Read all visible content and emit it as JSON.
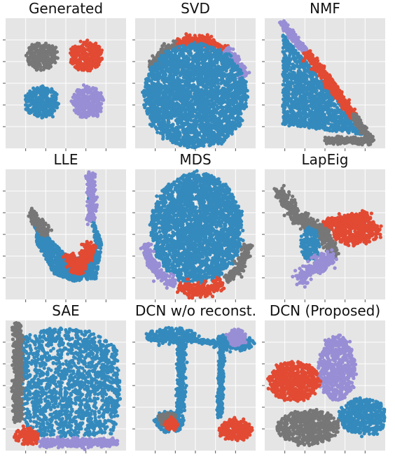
{
  "colors": {
    "cluster_blue": "#348ABD",
    "cluster_red": "#E24A33",
    "cluster_gray": "#777777",
    "cluster_purple": "#988ED5",
    "axes_bg": "#E5E5E5",
    "grid": "#FFFFFF"
  },
  "chart_data": [
    {
      "type": "scatter",
      "title": "Generated",
      "xlabel": "",
      "ylabel": "",
      "grid": true,
      "xlim": [
        0,
        10
      ],
      "ylim": [
        0,
        10
      ],
      "series": [
        {
          "color": "#777777",
          "shape": "blob",
          "cx": 3.0,
          "cy": 7.1,
          "rx": 1.3,
          "ry": 1.0
        },
        {
          "color": "#E24A33",
          "shape": "blob",
          "cx": 6.7,
          "cy": 7.1,
          "rx": 1.3,
          "ry": 1.1
        },
        {
          "color": "#348ABD",
          "shape": "blob",
          "cx": 3.0,
          "cy": 3.5,
          "rx": 1.4,
          "ry": 1.2
        },
        {
          "color": "#988ED5",
          "shape": "blob",
          "cx": 6.8,
          "cy": 3.5,
          "rx": 1.3,
          "ry": 1.2
        }
      ]
    },
    {
      "type": "scatter",
      "title": "SVD",
      "xlabel": "",
      "ylabel": "",
      "grid": true,
      "xlim": [
        0,
        10
      ],
      "ylim": [
        0,
        10
      ],
      "series": [
        {
          "color": "#777777",
          "shape": "arc",
          "cx": 5.0,
          "cy": 4.0,
          "r": 4.3,
          "a0": 150,
          "a1": 110,
          "width": 0.35
        },
        {
          "color": "#E24A33",
          "shape": "arc",
          "cx": 5.0,
          "cy": 4.0,
          "r": 4.3,
          "a0": 110,
          "a1": 55,
          "width": 0.4
        },
        {
          "color": "#988ED5",
          "shape": "arc",
          "cx": 5.0,
          "cy": 4.0,
          "r": 4.3,
          "a0": 55,
          "a1": 20,
          "width": 0.4
        },
        {
          "color": "#348ABD",
          "shape": "blob",
          "cx": 5.0,
          "cy": 4.0,
          "rx": 4.3,
          "ry": 4.0
        }
      ]
    },
    {
      "type": "scatter",
      "title": "NMF",
      "xlabel": "",
      "ylabel": "",
      "grid": true,
      "xlim": [
        0,
        10
      ],
      "ylim": [
        0,
        10
      ],
      "series": [
        {
          "color": "#348ABD",
          "shape": "triangle",
          "pts": [
            [
              1.5,
              1.8
            ],
            [
              1.5,
              8.8
            ],
            [
              8.5,
              1.0
            ]
          ]
        },
        {
          "color": "#988ED5",
          "shape": "line",
          "pts": [
            [
              1.4,
              9.6
            ],
            [
              3.6,
              7.2
            ]
          ],
          "width": 0.25
        },
        {
          "color": "#E24A33",
          "shape": "line",
          "pts": [
            [
              3.6,
              7.2
            ],
            [
              7.4,
              2.5
            ]
          ],
          "width": 0.35
        },
        {
          "color": "#777777",
          "shape": "line",
          "pts": [
            [
              7.4,
              2.5
            ],
            [
              8.8,
              0.6
            ],
            [
              5.0,
              0.6
            ]
          ],
          "width": 0.25
        }
      ]
    },
    {
      "type": "scatter",
      "title": "LLE",
      "xlabel": "",
      "ylabel": "",
      "grid": true,
      "xlim": [
        0,
        10
      ],
      "ylim": [
        0,
        10
      ],
      "series": [
        {
          "color": "#348ABD",
          "shape": "poly",
          "pts": [
            [
              2.3,
              6.3
            ],
            [
              3.5,
              4.8
            ],
            [
              5.5,
              3.0
            ],
            [
              7.5,
              4.2
            ],
            [
              7.0,
              6.5
            ],
            [
              6.8,
              8.8
            ],
            [
              7.3,
              6.2
            ],
            [
              8.0,
              4.3
            ],
            [
              7.5,
              1.6
            ],
            [
              5.5,
              1.4
            ],
            [
              4.0,
              2.0
            ],
            [
              2.6,
              4.3
            ]
          ]
        },
        {
          "color": "#777777",
          "shape": "line",
          "pts": [
            [
              2.2,
              6.6
            ],
            [
              3.0,
              5.6
            ],
            [
              3.5,
              5.0
            ]
          ],
          "width": 0.35
        },
        {
          "color": "#988ED5",
          "shape": "line",
          "pts": [
            [
              7.0,
              9.6
            ],
            [
              7.2,
              7.3
            ],
            [
              7.0,
              6.1
            ]
          ],
          "width": 0.3
        },
        {
          "color": "#E24A33",
          "shape": "line",
          "pts": [
            [
              5.3,
              3.2
            ],
            [
              6.1,
              2.2
            ],
            [
              6.6,
              3.2
            ],
            [
              7.0,
              4.3
            ]
          ],
          "width": 0.5
        }
      ]
    },
    {
      "type": "scatter",
      "title": "MDS",
      "xlabel": "",
      "ylabel": "",
      "grid": true,
      "xlim": [
        0,
        10
      ],
      "ylim": [
        0,
        10
      ],
      "series": [
        {
          "color": "#348ABD",
          "shape": "blob",
          "cx": 5.1,
          "cy": 5.5,
          "rx": 3.8,
          "ry": 4.2
        },
        {
          "color": "#988ED5",
          "shape": "arc",
          "cx": 5.1,
          "cy": 5.0,
          "r": 4.3,
          "a0": 190,
          "a1": 245,
          "width": 0.4
        },
        {
          "color": "#E24A33",
          "shape": "arc",
          "cx": 5.1,
          "cy": 5.0,
          "r": 4.3,
          "a0": 250,
          "a1": 300,
          "width": 0.5
        },
        {
          "color": "#777777",
          "shape": "arc",
          "cx": 5.1,
          "cy": 5.0,
          "r": 4.3,
          "a0": 305,
          "a1": 350,
          "width": 0.4
        }
      ]
    },
    {
      "type": "scatter",
      "title": "LapEig",
      "xlabel": "",
      "ylabel": "",
      "grid": true,
      "xlim": [
        0,
        10
      ],
      "ylim": [
        0,
        10
      ],
      "series": [
        {
          "color": "#777777",
          "shape": "line",
          "pts": [
            [
              1.3,
              8.2
            ],
            [
              2.8,
              6.2
            ],
            [
              4.4,
              5.4
            ],
            [
              5.3,
              5.2
            ]
          ],
          "width": 0.5
        },
        {
          "color": "#777777",
          "shape": "line",
          "pts": [
            [
              5.0,
              4.7
            ],
            [
              5.8,
              3.5
            ]
          ],
          "width": 0.45
        },
        {
          "color": "#E24A33",
          "shape": "blob",
          "cx": 7.6,
          "cy": 5.2,
          "rx": 2.0,
          "ry": 1.0
        },
        {
          "color": "#E24A33",
          "shape": "line",
          "pts": [
            [
              5.1,
              5.9
            ],
            [
              8.6,
              6.4
            ]
          ],
          "width": 0.35
        },
        {
          "color": "#348ABD",
          "shape": "blob",
          "cx": 3.8,
          "cy": 4.2,
          "rx": 0.7,
          "ry": 1.3
        },
        {
          "color": "#988ED5",
          "shape": "line",
          "pts": [
            [
              5.5,
              3.3
            ],
            [
              4.0,
              2.3
            ],
            [
              2.9,
              1.5
            ]
          ],
          "width": 0.6
        }
      ]
    },
    {
      "type": "scatter",
      "title": "SAE",
      "xlabel": "",
      "ylabel": "",
      "grid": true,
      "xlim": [
        0,
        10
      ],
      "ylim": [
        0,
        10
      ],
      "series": [
        {
          "color": "#348ABD",
          "shape": "poly",
          "pts": [
            [
              1.3,
              8.7
            ],
            [
              4.0,
              9.5
            ],
            [
              7.0,
              9.2
            ],
            [
              9.2,
              8.0
            ],
            [
              9.6,
              4.0
            ],
            [
              9.0,
              1.3
            ],
            [
              4.5,
              1.0
            ],
            [
              2.0,
              1.2
            ],
            [
              1.3,
              3.0
            ]
          ]
        },
        {
          "color": "#777777",
          "shape": "line",
          "pts": [
            [
              1.0,
              9.7
            ],
            [
              1.0,
              2.3
            ]
          ],
          "width": 0.35
        },
        {
          "color": "#988ED5",
          "shape": "line",
          "pts": [
            [
              3.0,
              0.6
            ],
            [
              9.2,
              0.6
            ]
          ],
          "width": 0.3
        },
        {
          "color": "#E24A33",
          "shape": "blob",
          "cx": 1.8,
          "cy": 1.1,
          "rx": 1.0,
          "ry": 0.6
        }
      ]
    },
    {
      "type": "scatter",
      "title": "DCN w/o reconst.",
      "xlabel": "",
      "ylabel": "",
      "grid": true,
      "xlim": [
        0,
        10
      ],
      "ylim": [
        0,
        10
      ],
      "series": [
        {
          "color": "#348ABD",
          "shape": "blob",
          "cx": 3.0,
          "cy": 8.8,
          "rx": 2.0,
          "ry": 0.6
        },
        {
          "color": "#348ABD",
          "shape": "blob",
          "cx": 8.1,
          "cy": 8.3,
          "rx": 1.7,
          "ry": 0.6
        },
        {
          "color": "#348ABD",
          "shape": "line",
          "pts": [
            [
              3.8,
              8.2
            ],
            [
              3.8,
              3.0
            ]
          ],
          "width": 0.3
        },
        {
          "color": "#348ABD",
          "shape": "line",
          "pts": [
            [
              4.2,
              8.6
            ],
            [
              6.5,
              8.3
            ]
          ],
          "width": 0.15
        },
        {
          "color": "#348ABD",
          "shape": "line",
          "pts": [
            [
              7.2,
              7.7
            ],
            [
              7.0,
              2.6
            ]
          ],
          "width": 0.2
        },
        {
          "color": "#348ABD",
          "shape": "blob",
          "cx": 2.9,
          "cy": 2.2,
          "rx": 1.2,
          "ry": 0.8
        },
        {
          "color": "#988ED5",
          "shape": "blob",
          "cx": 8.4,
          "cy": 8.7,
          "rx": 0.8,
          "ry": 0.6
        },
        {
          "color": "#E24A33",
          "shape": "blob",
          "cx": 8.3,
          "cy": 1.6,
          "rx": 1.4,
          "ry": 0.8
        },
        {
          "color": "#777777",
          "shape": "blob",
          "cx": 2.7,
          "cy": 2.4,
          "rx": 0.7,
          "ry": 0.5
        },
        {
          "color": "#E24A33",
          "shape": "blob",
          "cx": 3.0,
          "cy": 2.0,
          "rx": 0.5,
          "ry": 0.4
        }
      ]
    },
    {
      "type": "scatter",
      "title": "DCN (Proposed)",
      "xlabel": "",
      "ylabel": "",
      "grid": true,
      "xlim": [
        0,
        10
      ],
      "ylim": [
        0,
        10
      ],
      "series": [
        {
          "color": "#988ED5",
          "shape": "blob",
          "cx": 6.0,
          "cy": 6.3,
          "rx": 1.5,
          "ry": 2.5
        },
        {
          "color": "#E24A33",
          "shape": "blob",
          "cx": 2.4,
          "cy": 5.3,
          "rx": 2.1,
          "ry": 1.5
        },
        {
          "color": "#348ABD",
          "shape": "blob",
          "cx": 8.2,
          "cy": 2.6,
          "rx": 2.0,
          "ry": 1.4
        },
        {
          "color": "#777777",
          "shape": "blob",
          "cx": 3.6,
          "cy": 1.8,
          "rx": 2.6,
          "ry": 1.3
        }
      ]
    }
  ]
}
